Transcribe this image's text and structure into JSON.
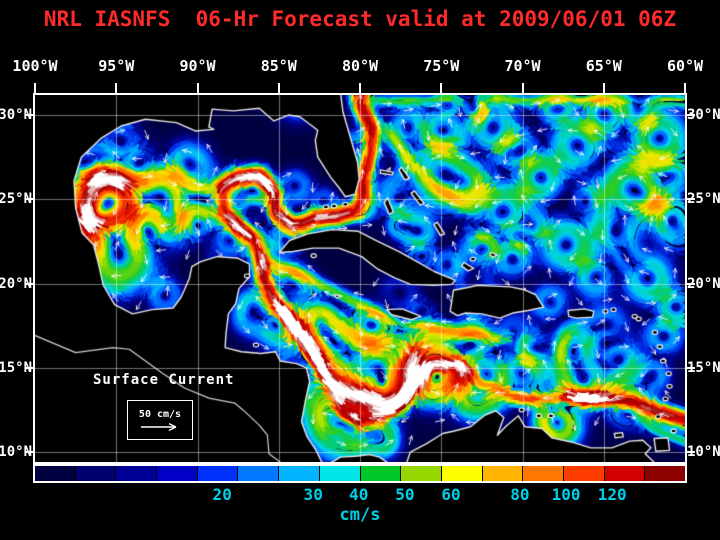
{
  "title": {
    "text": "NRL IASNFS  06-Hr Forecast valid at 2009/06/01 06Z",
    "color": "#ff2a2a"
  },
  "axes": {
    "lon_ticks": [
      {
        "label": "100°W",
        "lon": 100
      },
      {
        "label": "95°W",
        "lon": 95
      },
      {
        "label": "90°W",
        "lon": 90
      },
      {
        "label": "85°W",
        "lon": 85
      },
      {
        "label": "80°W",
        "lon": 80
      },
      {
        "label": "75°W",
        "lon": 75
      },
      {
        "label": "70°W",
        "lon": 70
      },
      {
        "label": "65°W",
        "lon": 65
      },
      {
        "label": "60°W",
        "lon": 60
      }
    ],
    "lat_ticks": [
      {
        "label": "30°N",
        "lat": 30
      },
      {
        "label": "25°N",
        "lat": 25
      },
      {
        "label": "20°N",
        "lat": 20
      },
      {
        "label": "15°N",
        "lat": 15
      },
      {
        "label": "10°N",
        "lat": 10
      }
    ],
    "label_color": "#ffffff"
  },
  "map": {
    "extent": {
      "lon_west": 100,
      "lon_east": 60,
      "lat_south": 9.4,
      "lat_north": 31.2
    },
    "annotation": "Surface Current",
    "scale": {
      "label": "50 cm/s"
    }
  },
  "colorbar": {
    "units": "cm/s",
    "label_color": "#00cfe8",
    "cells": [
      "#000041",
      "#00006e",
      "#000096",
      "#0000c8",
      "#0032ff",
      "#0078ff",
      "#00b4ff",
      "#00e6e6",
      "#00c828",
      "#96d700",
      "#ffff00",
      "#ffb400",
      "#ff7800",
      "#ff3c00",
      "#d20000",
      "#8c0000"
    ],
    "ticks": [
      {
        "label": "20",
        "pos": 0.288
      },
      {
        "label": "30",
        "pos": 0.428
      },
      {
        "label": "40",
        "pos": 0.498
      },
      {
        "label": "50",
        "pos": 0.569
      },
      {
        "label": "60",
        "pos": 0.64
      },
      {
        "label": "80",
        "pos": 0.746
      },
      {
        "label": "100",
        "pos": 0.817
      },
      {
        "label": "120",
        "pos": 0.888
      }
    ]
  }
}
